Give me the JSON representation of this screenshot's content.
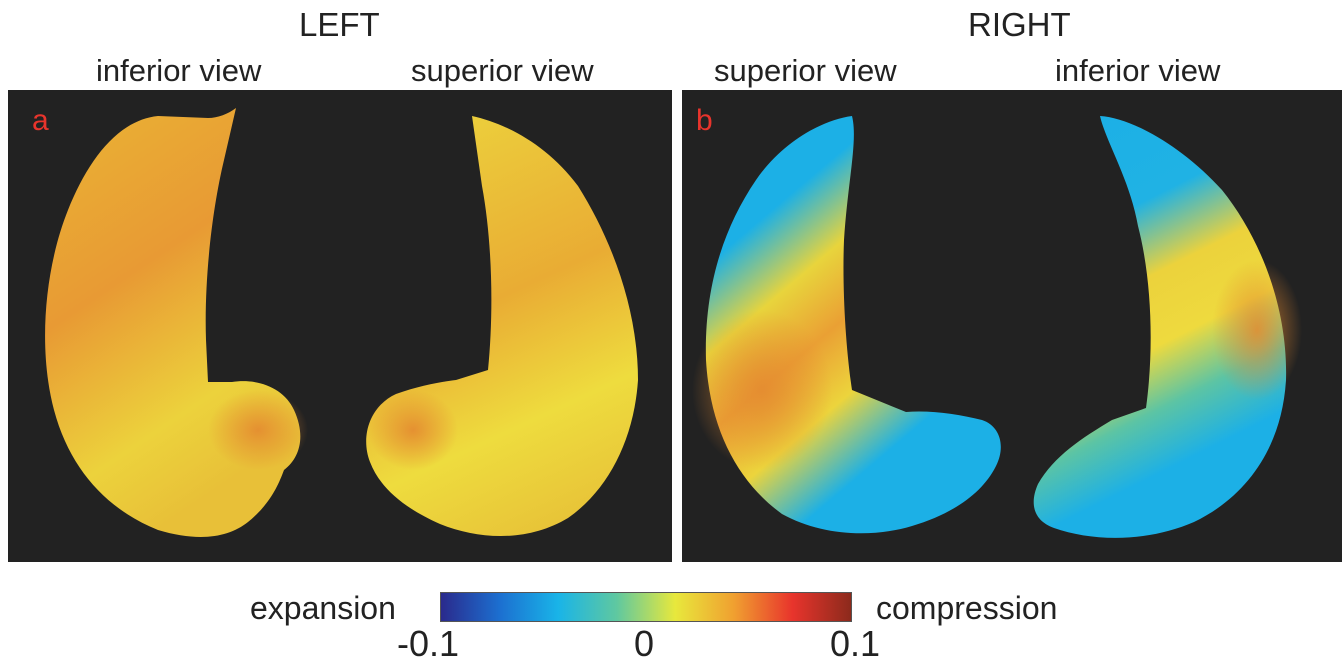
{
  "groups": {
    "left_label": "LEFT",
    "right_label": "RIGHT"
  },
  "panels": [
    {
      "letter": "a",
      "views": [
        "inferior view",
        "superior view"
      ]
    },
    {
      "letter": "b",
      "views": [
        "superior view",
        "inferior view"
      ]
    }
  ],
  "colorbar": {
    "left_label": "expansion",
    "right_label": "compression",
    "ticks": [
      "-0.1",
      "0",
      "0.1"
    ],
    "min": -0.1,
    "max": 0.1,
    "colormap": [
      "#2a2a8c",
      "#1c6fd0",
      "#19b4e8",
      "#5fc8a0",
      "#e8e83c",
      "#f0a030",
      "#e8342c",
      "#8c2a1c"
    ]
  },
  "colors": {
    "panel_background": "#222222",
    "panel_letter": "#e8342c",
    "lung_orange": "#eaa134",
    "lung_yellow": "#ecd43c",
    "lung_blue": "#1cb0e6",
    "lung_teal": "#54c0a0"
  }
}
